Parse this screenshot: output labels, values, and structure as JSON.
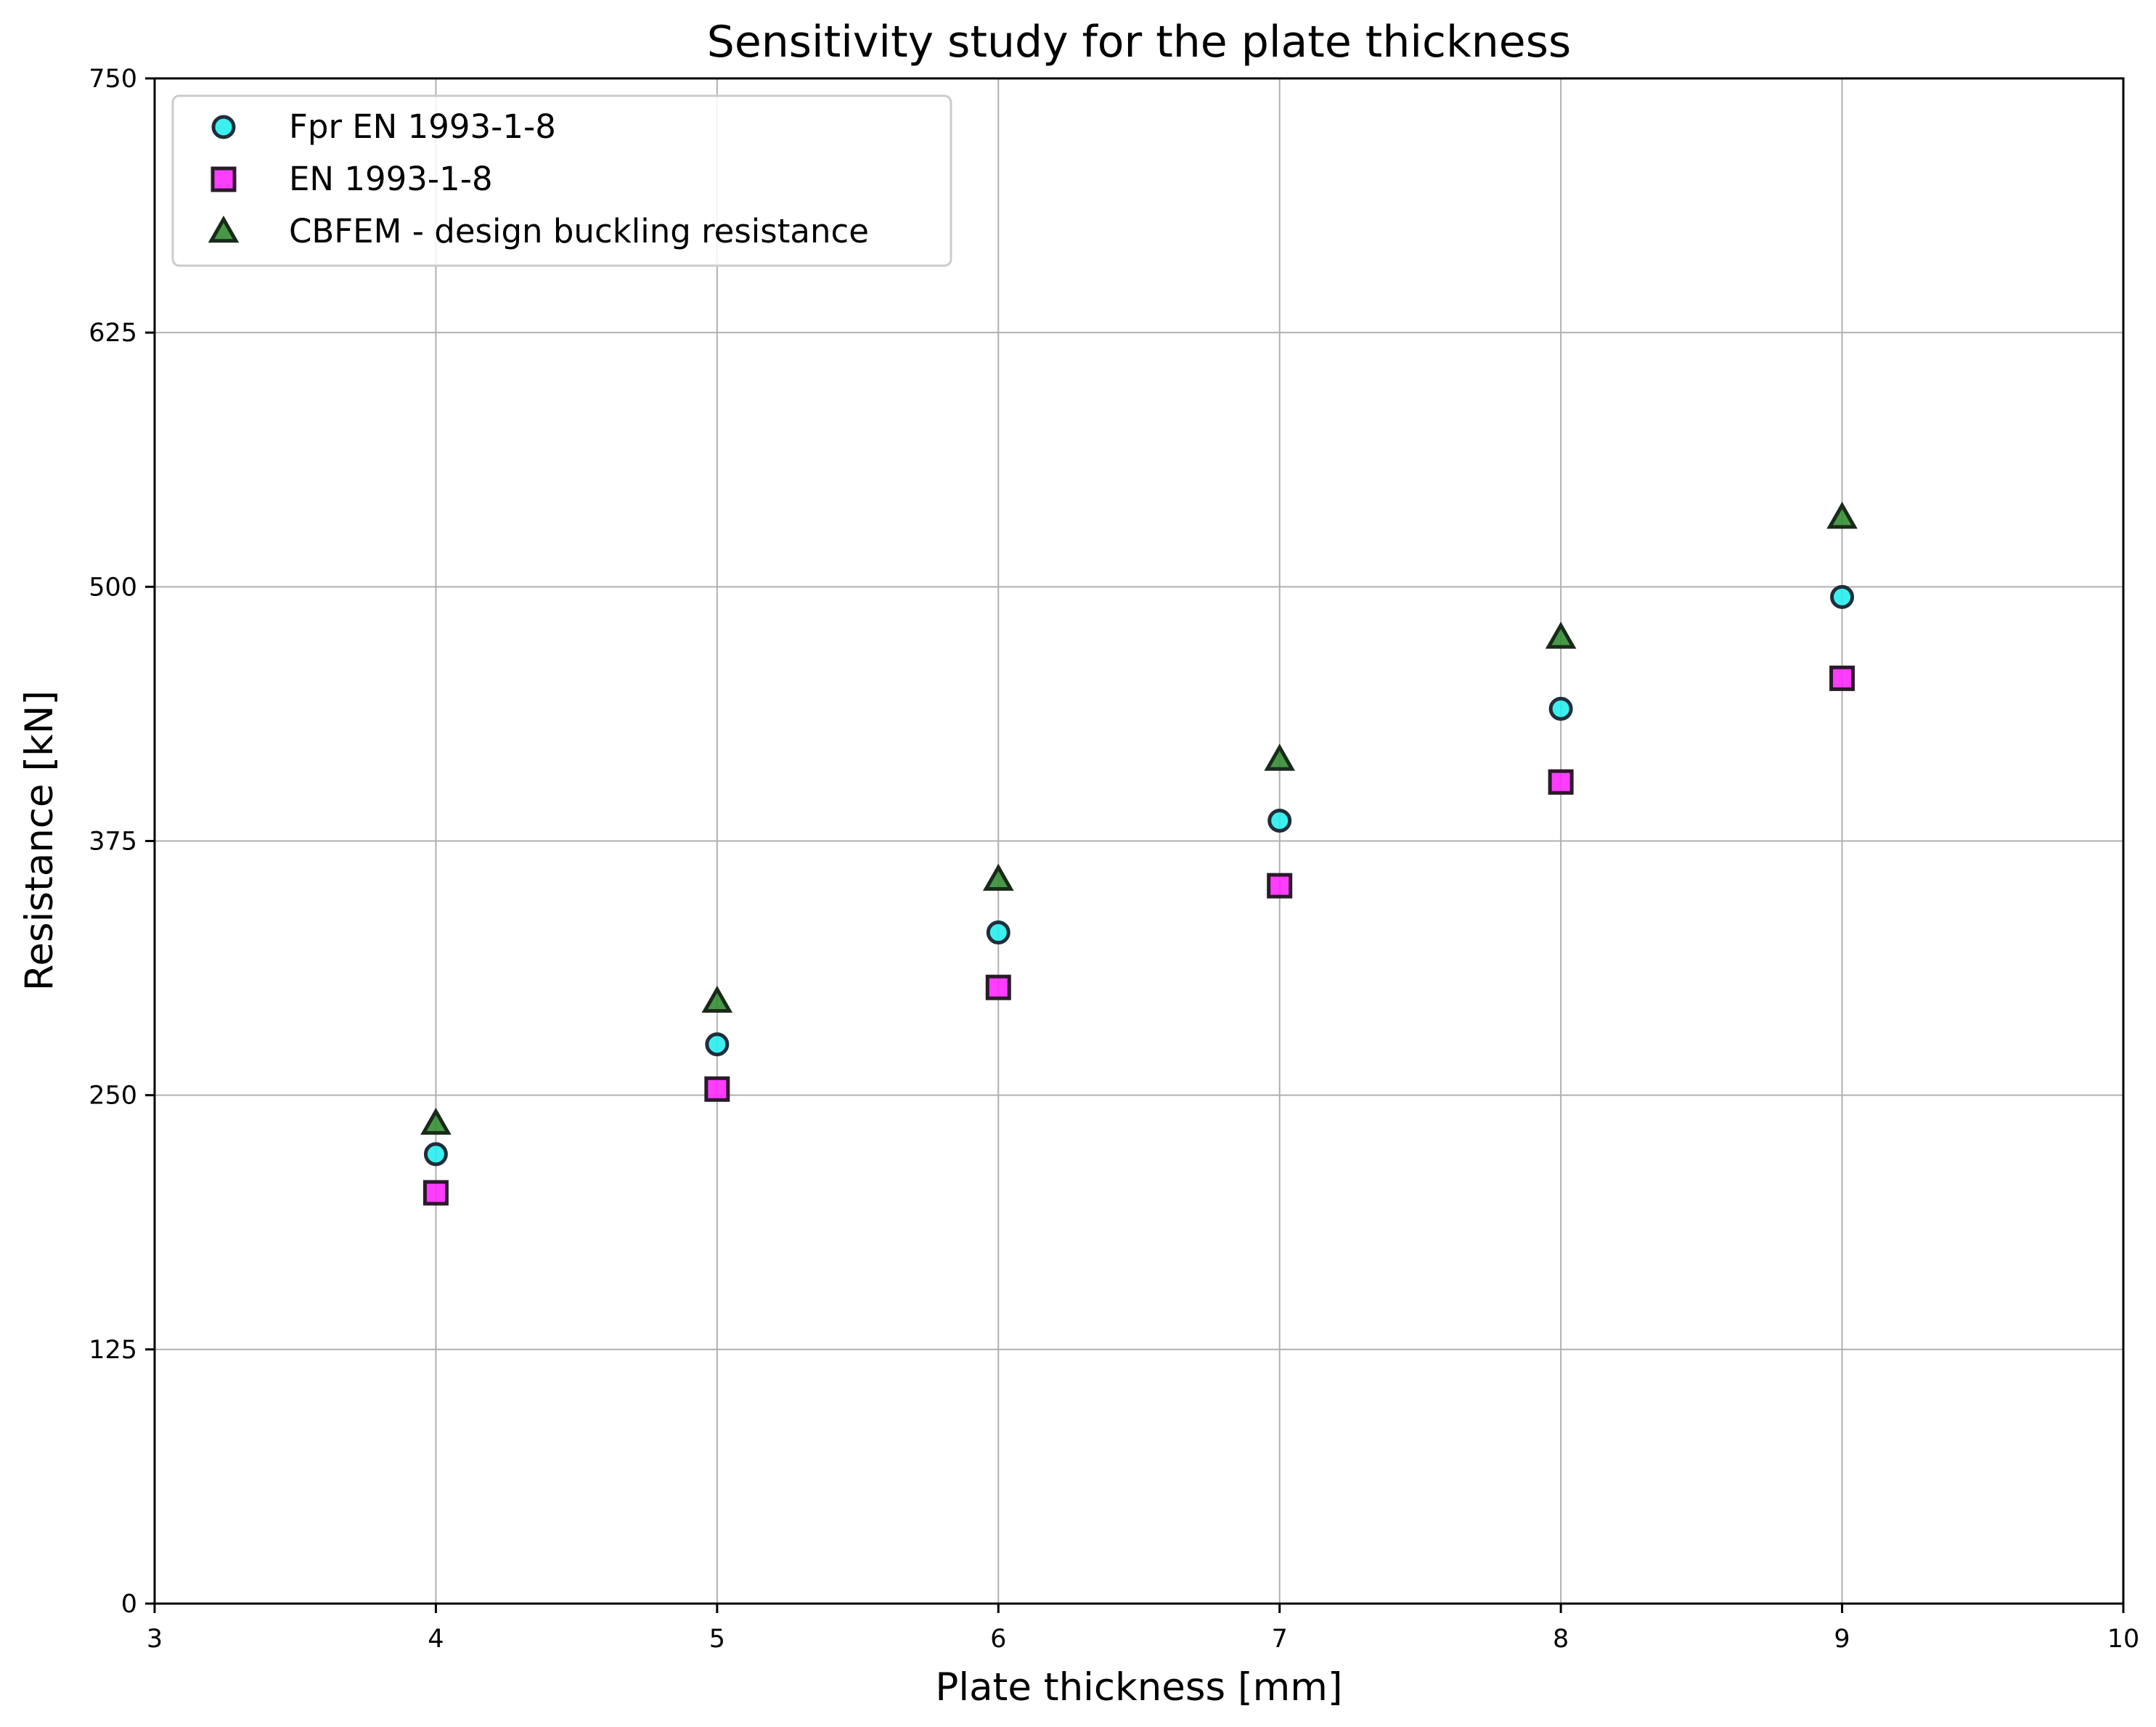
{
  "chart_data": {
    "type": "scatter",
    "title": "Sensitivity study for the plate thickness",
    "xlabel": "Plate thickness [mm]",
    "ylabel": "Resistance [kN]",
    "xlim": [
      3,
      10
    ],
    "ylim": [
      0,
      750
    ],
    "xticks": [
      3,
      4,
      5,
      6,
      7,
      8,
      9,
      10
    ],
    "yticks": [
      0,
      125,
      250,
      375,
      500,
      625,
      750
    ],
    "grid": true,
    "legend_position": "upper-left",
    "series": [
      {
        "name": "Fpr EN 1993-1-8",
        "marker": "circle",
        "color": "#22eeee",
        "edge_color": "#1f2f3a",
        "x": [
          4,
          5,
          6,
          7,
          8,
          9
        ],
        "y": [
          221,
          275,
          330,
          385,
          440,
          495
        ]
      },
      {
        "name": "EN 1993-1-8",
        "marker": "square",
        "color": "#ff22ff",
        "edge_color": "#2a1a2a",
        "x": [
          4,
          5,
          6,
          7,
          8,
          9
        ],
        "y": [
          202,
          253,
          303,
          353,
          404,
          455
        ]
      },
      {
        "name": "CBFEM - design buckling resistance",
        "marker": "triangle",
        "color": "#2e8b2e",
        "edge_color": "#1a2a1a",
        "x": [
          4,
          5,
          6,
          7,
          8,
          9
        ],
        "y": [
          236,
          296,
          356,
          415,
          475,
          534
        ]
      }
    ]
  }
}
